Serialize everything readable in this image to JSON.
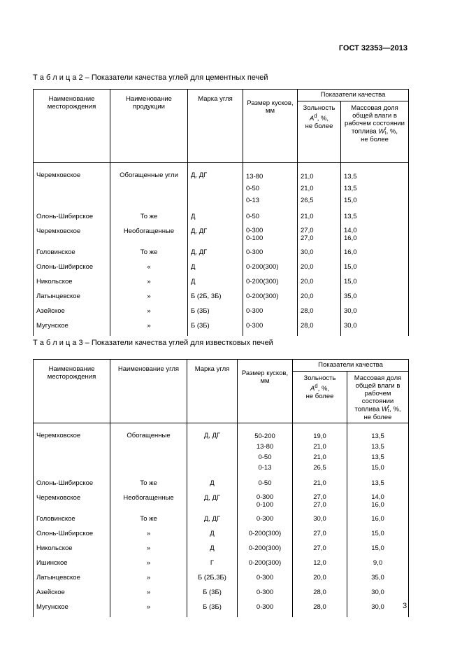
{
  "header": {
    "doc_id": "ГОСТ 32353—2013"
  },
  "tables": [
    {
      "caption": "Т а б л и ц а  2 – Показатели качества углей для цементных печей",
      "columns": [
        "Наименование месторождения",
        "Наименование продукции",
        "Марка угля",
        "Размер кусков, мм"
      ],
      "group": "Показатели качества",
      "ash": {
        "label": "Зольность",
        "symbol": "A",
        "sup": "d",
        "unit": ", %,",
        "note": "не более"
      },
      "moisture": {
        "label": "Массовая доля общей влаги в рабочем состоянии топлива",
        "symbol": "W",
        "sup": "r",
        "sub": "t",
        "unit": ", %,",
        "note": "не более"
      },
      "rows": [
        [
          [
            "Черемховское"
          ],
          [
            "Обогащенные угли"
          ],
          [
            "Д, ДГ"
          ],
          [
            "13-80",
            "0-50",
            "0-13"
          ],
          [
            "21,0",
            "21,0",
            "26,5"
          ],
          [
            "13,5",
            "13,5",
            "15,0"
          ]
        ],
        [
          [
            "Олонь-Шибирское"
          ],
          [
            "То же"
          ],
          [
            "Д"
          ],
          [
            "0-50"
          ],
          [
            "21,0"
          ],
          [
            "13,5"
          ]
        ],
        [
          [
            "Черемховское"
          ],
          [
            "Необогащенные"
          ],
          [
            "Д, ДГ"
          ],
          [
            "0-300",
            "0-100"
          ],
          [
            "27,0",
            "27,0"
          ],
          [
            "14,0",
            "16,0"
          ]
        ],
        [
          [
            "Головинское"
          ],
          [
            "То же"
          ],
          [
            "Д, ДГ"
          ],
          [
            "0-300"
          ],
          [
            "30,0"
          ],
          [
            "16,0"
          ]
        ],
        [
          [
            "Олонь-Шибирское"
          ],
          [
            "«"
          ],
          [
            "Д"
          ],
          [
            "0-200(300)"
          ],
          [
            "20,0"
          ],
          [
            "15,0"
          ]
        ],
        [
          [
            "Никольское"
          ],
          [
            "»"
          ],
          [
            "Д"
          ],
          [
            "0-200(300)"
          ],
          [
            "20,0"
          ],
          [
            "15,0"
          ]
        ],
        [
          [
            "Латынцевское"
          ],
          [
            "»"
          ],
          [
            "Б (2Б, 3Б)"
          ],
          [
            "0-200(300)"
          ],
          [
            "20,0"
          ],
          [
            "35,0"
          ]
        ],
        [
          [
            "Азейское"
          ],
          [
            "»"
          ],
          [
            "Б (3Б)"
          ],
          [
            "0-300"
          ],
          [
            "28,0"
          ],
          [
            "30,0"
          ]
        ],
        [
          [
            "Мугунское"
          ],
          [
            "»"
          ],
          [
            "Б (3Б)"
          ],
          [
            "0-300"
          ],
          [
            "28,0"
          ],
          [
            "30,0"
          ]
        ]
      ]
    },
    {
      "caption": "Т а б л и ц а 3 –  Показатели качества углей для известковых печей",
      "columns": [
        "Наименование месторождения",
        "Наименование угля",
        "Марка угля",
        "Размер кусков, мм"
      ],
      "group": "Показатели качества",
      "ash": {
        "label": "Зольность",
        "symbol": "A",
        "sup": "d",
        "unit": ", %,",
        "note": "не более"
      },
      "moisture": {
        "label": "Массовая доля общей влаги в рабочем состоянии топлива",
        "symbol": "W",
        "sup": "r",
        "sub": "t",
        "unit": ", %,",
        "note": "не более"
      },
      "rows": [
        [
          [
            "Черемховское"
          ],
          [
            "Обогащенные"
          ],
          [
            "Д, ДГ"
          ],
          [
            "50-200",
            "13-80",
            "0-50",
            "0-13"
          ],
          [
            "19,0",
            "21,0",
            "21,0",
            "26,5"
          ],
          [
            "13,5",
            "13,5",
            "13,5",
            "15,0"
          ]
        ],
        [
          [
            "Олонь-Шибирское"
          ],
          [
            "То же"
          ],
          [
            "Д"
          ],
          [
            "0-50"
          ],
          [
            "21,0"
          ],
          [
            "13,5"
          ]
        ],
        [
          [
            "Черемховское"
          ],
          [
            "Необогащенные"
          ],
          [
            "Д, ДГ"
          ],
          [
            "0-300",
            "0-100"
          ],
          [
            "27,0",
            "27,0"
          ],
          [
            "14,0",
            "16,0"
          ]
        ],
        [
          [
            "Головинское"
          ],
          [
            "То же"
          ],
          [
            "Д, ДГ"
          ],
          [
            "0-300"
          ],
          [
            "30,0"
          ],
          [
            "16,0"
          ]
        ],
        [
          [
            "Олонь-Шибирское"
          ],
          [
            "»"
          ],
          [
            "Д"
          ],
          [
            "0-200(300)"
          ],
          [
            "27,0"
          ],
          [
            "15,0"
          ]
        ],
        [
          [
            "Никольское"
          ],
          [
            "»"
          ],
          [
            "Д"
          ],
          [
            "0-200(300)"
          ],
          [
            "27,0"
          ],
          [
            "15,0"
          ]
        ],
        [
          [
            "Ишинское"
          ],
          [
            "»"
          ],
          [
            "Г"
          ],
          [
            "0-200(300)"
          ],
          [
            "12,0"
          ],
          [
            "9,0"
          ]
        ],
        [
          [
            "Латынцевское"
          ],
          [
            "»"
          ],
          [
            "Б (2Б,3Б)"
          ],
          [
            "0-300"
          ],
          [
            "20,0"
          ],
          [
            "35,0"
          ]
        ],
        [
          [
            "Азейское"
          ],
          [
            "»"
          ],
          [
            "Б (3Б)"
          ],
          [
            "0-300"
          ],
          [
            "28,0"
          ],
          [
            "30,0"
          ]
        ],
        [
          [
            "Мугунское"
          ],
          [
            "»"
          ],
          [
            "Б (3Б)"
          ],
          [
            "0-300"
          ],
          [
            "28,0"
          ],
          [
            "30,0"
          ]
        ]
      ]
    }
  ],
  "page_number": "3"
}
